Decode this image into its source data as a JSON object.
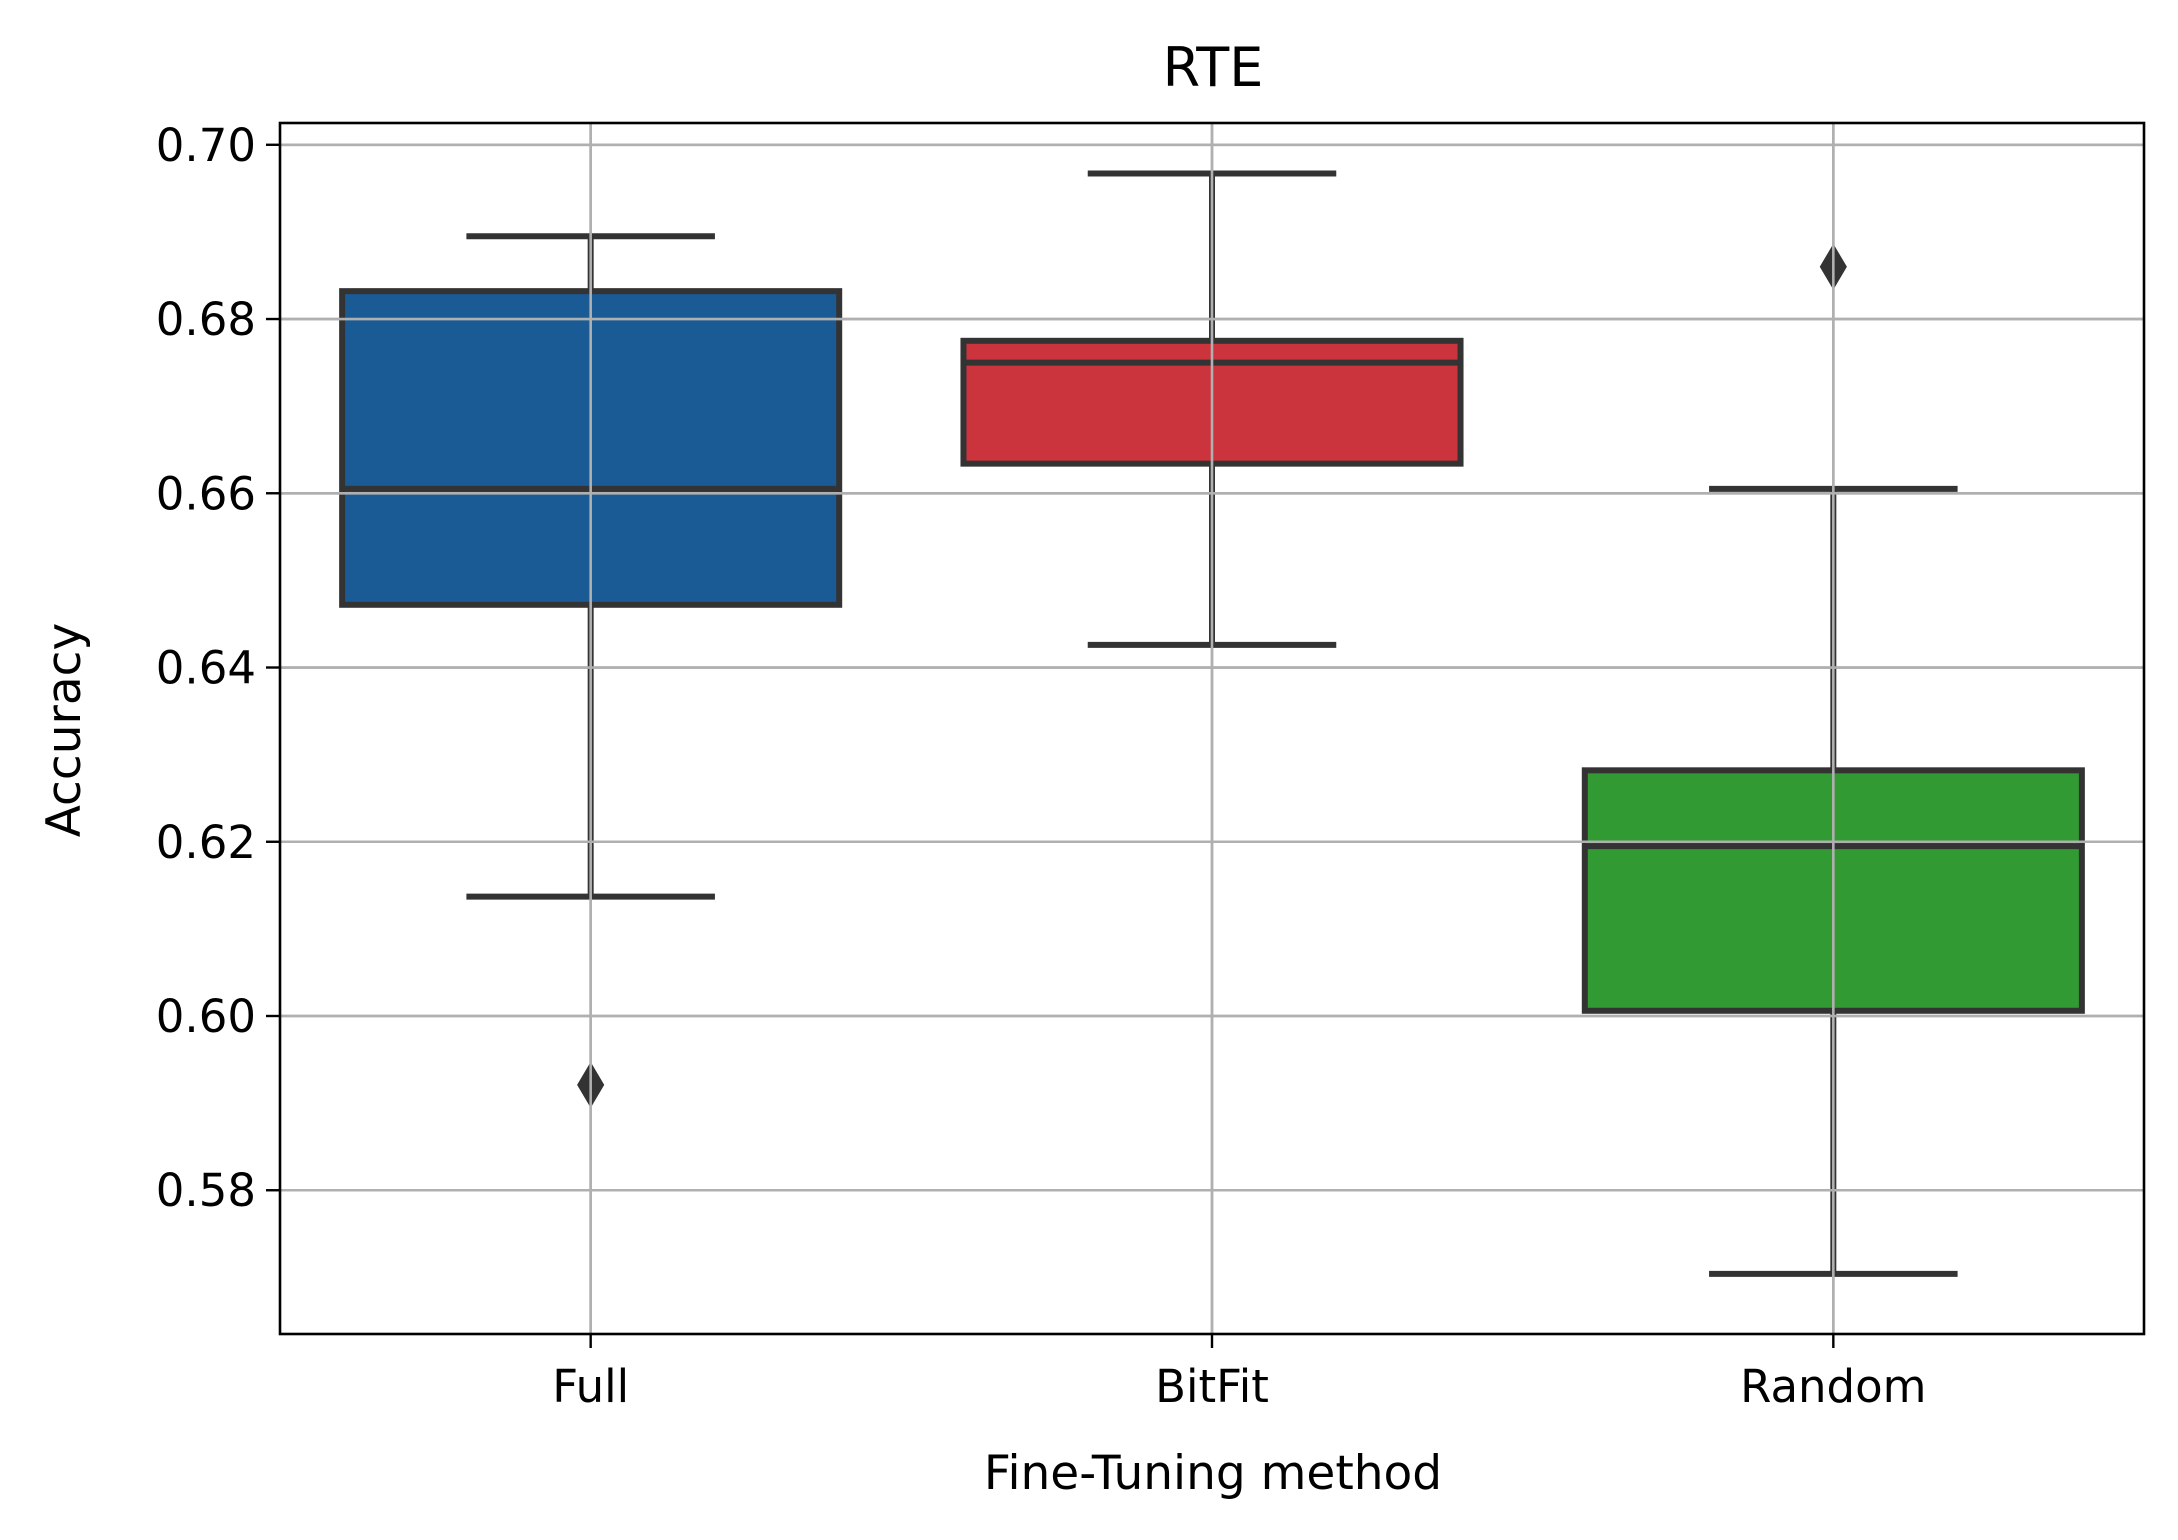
{
  "chart_data": {
    "type": "box",
    "title": "RTE",
    "xlabel": "Fine-Tuning method",
    "ylabel": "Accuracy",
    "ylim": [
      0.5635,
      0.7025
    ],
    "yticks": [
      0.58,
      0.6,
      0.62,
      0.64,
      0.66,
      0.68,
      0.7
    ],
    "ytick_labels": [
      "0.58",
      "0.60",
      "0.62",
      "0.64",
      "0.66",
      "0.68",
      "0.70"
    ],
    "grid": true,
    "categories": [
      "Full",
      "BitFit",
      "Random"
    ],
    "boxes": [
      {
        "category": "Full",
        "whisker_low": 0.6137,
        "q1": 0.6472,
        "median": 0.6605,
        "q3": 0.6832,
        "whisker_high": 0.6895,
        "outliers": [
          0.5921
        ],
        "color": "#1a5b96"
      },
      {
        "category": "BitFit",
        "whisker_low": 0.6426,
        "q1": 0.6634,
        "median": 0.675,
        "q3": 0.6775,
        "whisker_high": 0.6967,
        "outliers": [],
        "color": "#cb343c"
      },
      {
        "category": "Random",
        "whisker_low": 0.5704,
        "q1": 0.6006,
        "median": 0.6195,
        "q3": 0.6282,
        "whisker_high": 0.6605,
        "outliers": [
          0.686
        ],
        "color": "#329a33"
      }
    ]
  }
}
